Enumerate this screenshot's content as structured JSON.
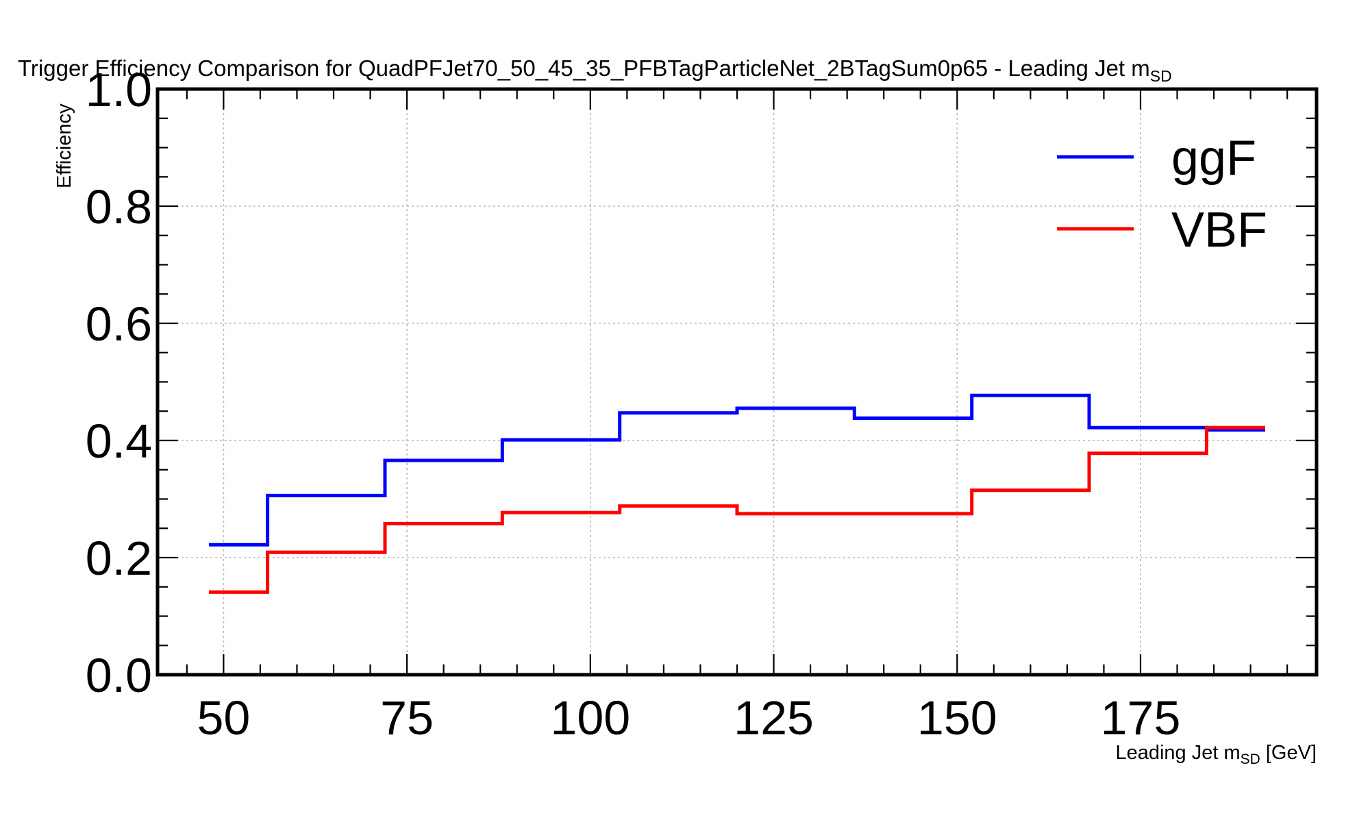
{
  "chart_data": {
    "type": "line",
    "style": "step",
    "title": "Trigger Efficiency Comparison for QuadPFJet70_50_45_35_PFBTagParticleNet_2BTagSum0p65 - Leading Jet m",
    "title_sub": "SD",
    "xlabel": "Leading Jet m",
    "xlabel_sub": "SD",
    "xlabel_unit": " [GeV]",
    "ylabel": "Efficiency",
    "xlim": [
      41,
      199
    ],
    "ylim": [
      0.0,
      1.0
    ],
    "x_ticks": [
      "50",
      "75",
      "100",
      "125",
      "150",
      "175"
    ],
    "y_ticks": [
      "0.0",
      "0.2",
      "0.4",
      "0.6",
      "0.8",
      "1.0"
    ],
    "bin_edges": [
      48,
      56,
      72,
      88,
      104,
      120,
      136,
      152,
      168,
      184,
      192
    ],
    "grid": true,
    "legend_position": "top-right",
    "series": [
      {
        "name": "ggF",
        "color": "#0000ff",
        "values": [
          0.222,
          0.306,
          0.366,
          0.401,
          0.447,
          0.455,
          0.438,
          0.477,
          0.422,
          0.418
        ]
      },
      {
        "name": "VBF",
        "color": "#ff0000",
        "values": [
          0.141,
          0.209,
          0.258,
          0.277,
          0.288,
          0.275,
          0.275,
          0.315,
          0.378,
          0.422
        ]
      }
    ]
  }
}
